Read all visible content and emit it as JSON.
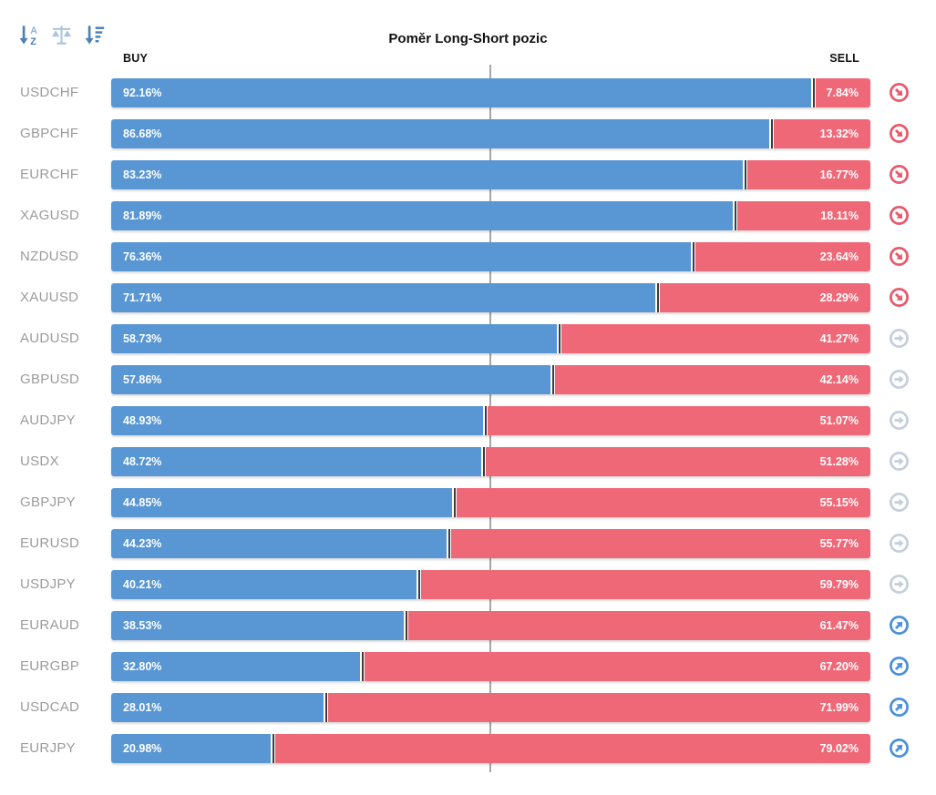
{
  "header": {
    "title": "Poměr Long-Short pozic",
    "buy_label": "BUY",
    "sell_label": "SELL"
  },
  "toolbar": {
    "icons": [
      "sort-alphabetical",
      "balance-scale",
      "sort-amount-descending"
    ]
  },
  "chart_data": {
    "type": "bar",
    "orientation": "horizontal-stacked",
    "title": "Poměr Long-Short pozic",
    "categories": [
      "USDCHF",
      "GBPCHF",
      "EURCHF",
      "XAGUSD",
      "NZDUSD",
      "XAUUSD",
      "AUDUSD",
      "GBPUSD",
      "AUDJPY",
      "USDX",
      "GBPJPY",
      "EURUSD",
      "USDJPY",
      "EURAUD",
      "EURGBP",
      "USDCAD",
      "EURJPY"
    ],
    "series": [
      {
        "name": "BUY",
        "color": "#5996D4",
        "values": [
          92.16,
          86.68,
          83.23,
          81.89,
          76.36,
          71.71,
          58.73,
          57.86,
          48.93,
          48.72,
          44.85,
          44.23,
          40.21,
          38.53,
          32.8,
          28.01,
          20.98
        ]
      },
      {
        "name": "SELL",
        "color": "#EF6877",
        "values": [
          7.84,
          13.32,
          16.77,
          18.11,
          23.64,
          28.29,
          41.27,
          42.14,
          51.07,
          51.28,
          55.15,
          55.77,
          59.79,
          61.47,
          67.2,
          71.99,
          79.02
        ]
      }
    ],
    "xlim": [
      0,
      100
    ],
    "center_reference_line_pct": 50,
    "grid": false,
    "legend_position": "top (BUY left, SELL right)"
  },
  "rows": [
    {
      "symbol": "USDCHF",
      "buy": "92.16%",
      "sell": "7.84%",
      "buy_value": 92.16,
      "sell_value": 7.84,
      "trend": "down"
    },
    {
      "symbol": "GBPCHF",
      "buy": "86.68%",
      "sell": "13.32%",
      "buy_value": 86.68,
      "sell_value": 13.32,
      "trend": "down"
    },
    {
      "symbol": "EURCHF",
      "buy": "83.23%",
      "sell": "16.77%",
      "buy_value": 83.23,
      "sell_value": 16.77,
      "trend": "down"
    },
    {
      "symbol": "XAGUSD",
      "buy": "81.89%",
      "sell": "18.11%",
      "buy_value": 81.89,
      "sell_value": 18.11,
      "trend": "down"
    },
    {
      "symbol": "NZDUSD",
      "buy": "76.36%",
      "sell": "23.64%",
      "buy_value": 76.36,
      "sell_value": 23.64,
      "trend": "down"
    },
    {
      "symbol": "XAUUSD",
      "buy": "71.71%",
      "sell": "28.29%",
      "buy_value": 71.71,
      "sell_value": 28.29,
      "trend": "down"
    },
    {
      "symbol": "AUDUSD",
      "buy": "58.73%",
      "sell": "41.27%",
      "buy_value": 58.73,
      "sell_value": 41.27,
      "trend": "flat"
    },
    {
      "symbol": "GBPUSD",
      "buy": "57.86%",
      "sell": "42.14%",
      "buy_value": 57.86,
      "sell_value": 42.14,
      "trend": "flat"
    },
    {
      "symbol": "AUDJPY",
      "buy": "48.93%",
      "sell": "51.07%",
      "buy_value": 48.93,
      "sell_value": 51.07,
      "trend": "flat"
    },
    {
      "symbol": "USDX",
      "buy": "48.72%",
      "sell": "51.28%",
      "buy_value": 48.72,
      "sell_value": 51.28,
      "trend": "flat"
    },
    {
      "symbol": "GBPJPY",
      "buy": "44.85%",
      "sell": "55.15%",
      "buy_value": 44.85,
      "sell_value": 55.15,
      "trend": "flat"
    },
    {
      "symbol": "EURUSD",
      "buy": "44.23%",
      "sell": "55.77%",
      "buy_value": 44.23,
      "sell_value": 55.77,
      "trend": "flat"
    },
    {
      "symbol": "USDJPY",
      "buy": "40.21%",
      "sell": "59.79%",
      "buy_value": 40.21,
      "sell_value": 59.79,
      "trend": "flat"
    },
    {
      "symbol": "EURAUD",
      "buy": "38.53%",
      "sell": "61.47%",
      "buy_value": 38.53,
      "sell_value": 61.47,
      "trend": "up"
    },
    {
      "symbol": "EURGBP",
      "buy": "32.80%",
      "sell": "67.20%",
      "buy_value": 32.8,
      "sell_value": 67.2,
      "trend": "up"
    },
    {
      "symbol": "USDCAD",
      "buy": "28.01%",
      "sell": "71.99%",
      "buy_value": 28.01,
      "sell_value": 71.99,
      "trend": "up"
    },
    {
      "symbol": "EURJPY",
      "buy": "20.98%",
      "sell": "79.02%",
      "buy_value": 20.98,
      "sell_value": 79.02,
      "trend": "up"
    }
  ],
  "colors": {
    "buy": "#5996D4",
    "sell": "#EF6877",
    "trend_down": "#E8596B",
    "trend_flat": "#C5CFDC",
    "trend_up": "#4A90DD",
    "center_line": "#A5A5A5",
    "segment_divider": "#3C3C3C",
    "symbol_text": "#9B9B9B",
    "sort_icon_dark": "#4E81B3",
    "sort_icon_light": "#A9C4DD"
  }
}
